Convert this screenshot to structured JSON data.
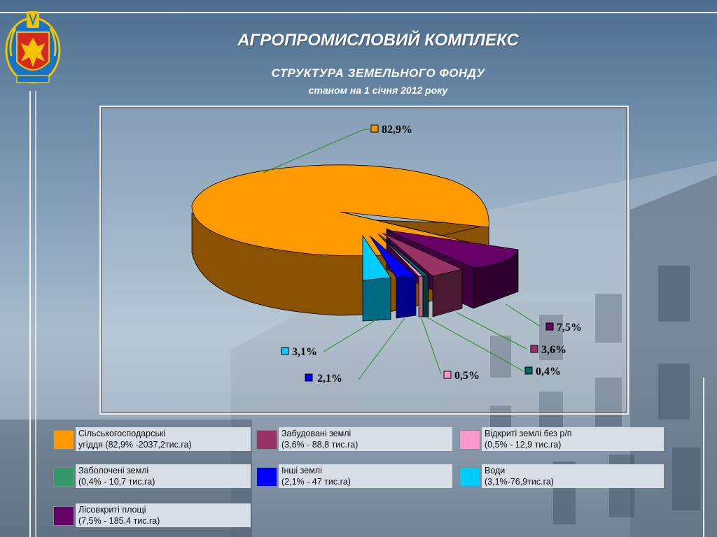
{
  "header": {
    "title": "АГРОПРОМИСЛОВИЙ КОМПЛЕКС",
    "subtitle": "СТРУКТУРА  ЗЕМЕЛЬНОГО  ФОНДУ",
    "date_line": "станом  на  1  січня  2012  року"
  },
  "colors": {
    "agricultural": "#ff9900",
    "built_up": "#993366",
    "open_lands": "#ff99cc",
    "wetlands": "#339966",
    "other_lands": "#0000ff",
    "water": "#00ccff",
    "forest": "#660066",
    "chart_teal": "#006666"
  },
  "chart_data": {
    "type": "pie",
    "title": "",
    "slices": [
      {
        "label": "Сільськогосподарські угіддя",
        "value": 82.9,
        "value_label": "82,9%",
        "color": "#ff9900"
      },
      {
        "label": "Лісовкриті площі",
        "value": 7.5,
        "value_label": "7,5%",
        "color": "#660066"
      },
      {
        "label": "Забудовані землі",
        "value": 3.6,
        "value_label": "3,6%",
        "color": "#993366"
      },
      {
        "label": "Заболочені землі",
        "value": 0.4,
        "value_label": "0,4%",
        "color": "#006666"
      },
      {
        "label": "Відкриті землі без р/п",
        "value": 0.5,
        "value_label": "0,5%",
        "color": "#ff99cc"
      },
      {
        "label": "Інші землі",
        "value": 2.1,
        "value_label": "2,1%",
        "color": "#0000ff"
      },
      {
        "label": "Води",
        "value": 3.1,
        "value_label": "3,1%",
        "color": "#00ccff"
      }
    ],
    "legend_placement": "bottom"
  },
  "legend": [
    {
      "name": "Сільськогосподарські",
      "detail": "угіддя (82,9% -2037,2тис.га)",
      "color": "#ff9900"
    },
    {
      "name": "Забудовані  землі",
      "detail": "(3,6% - 88,8 тис.га)",
      "color": "#993366"
    },
    {
      "name": "Відкриті землі без р/п",
      "detail": "(0,5% - 12,9 тис.га)",
      "color": "#ff99cc"
    },
    {
      "name": "Заболочені  землі",
      "detail": "(0,4% - 10,7 тис.га)",
      "color": "#339966"
    },
    {
      "name": "Інші землі",
      "detail": "(2,1% - 47 тис.га)",
      "color": "#0000ff"
    },
    {
      "name": "Води",
      "detail": "(3,1%-76,9тис.га)",
      "color": "#00ccff"
    },
    {
      "name": "Лісовкриті  площі",
      "detail": "(7,5% - 185,4 тис.га)",
      "color": "#660066"
    }
  ]
}
